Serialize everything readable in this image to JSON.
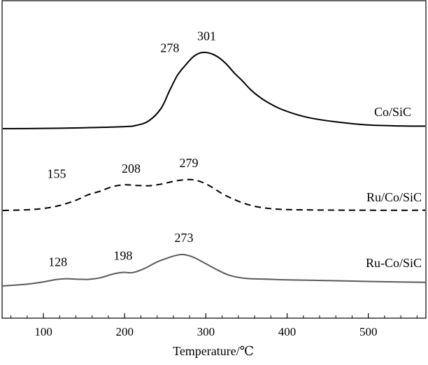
{
  "chart_data": {
    "type": "line",
    "title": "",
    "xlabel": "Temperature/℃",
    "ylabel": "",
    "xlim": [
      50,
      570
    ],
    "xticks": [
      100,
      200,
      300,
      400,
      500
    ],
    "xtick_labels": [
      "100",
      "200",
      "300",
      "400",
      "500"
    ],
    "grid": false,
    "colors": {
      "Co/SiC": "#000000",
      "Ru/Co/SiC": "#000000",
      "Ru-Co/SiC": "#5a5a5a"
    },
    "series": [
      {
        "name": "Co/SiC",
        "style": "solid",
        "x": [
          50,
          100,
          150,
          200,
          215,
          230,
          245,
          255,
          265,
          275,
          285,
          295,
          305,
          315,
          325,
          335,
          345,
          355,
          365,
          375,
          390,
          410,
          430,
          460,
          500,
          540,
          570
        ],
        "y": [
          0.0,
          0.1,
          0.4,
          0.9,
          1.5,
          3.5,
          9.0,
          16.5,
          23.5,
          28.0,
          31.8,
          33.5,
          33.2,
          31.5,
          28.5,
          24.5,
          21.0,
          17.2,
          14.2,
          11.8,
          9.0,
          6.4,
          4.6,
          3.0,
          1.6,
          1.2,
          1.1
        ],
        "peaks": [
          {
            "x": 278,
            "label": "278"
          },
          {
            "x": 301,
            "label": "301"
          }
        ]
      },
      {
        "name": "Ru/Co/SiC",
        "style": "dashed",
        "x": [
          50,
          80,
          100,
          120,
          140,
          155,
          170,
          185,
          200,
          215,
          230,
          245,
          260,
          270,
          280,
          290,
          300,
          310,
          320,
          335,
          350,
          365,
          380,
          400,
          440,
          500,
          570
        ],
        "y": [
          0.0,
          0.3,
          0.9,
          2.2,
          4.5,
          6.9,
          8.5,
          10.5,
          11.3,
          11.0,
          10.9,
          11.6,
          12.8,
          13.4,
          13.6,
          13.1,
          11.7,
          9.7,
          7.4,
          4.8,
          2.8,
          1.5,
          0.8,
          0.4,
          0.2,
          0.1,
          0.1
        ],
        "peaks": [
          {
            "x": 155,
            "label": "155"
          },
          {
            "x": 208,
            "label": "208"
          },
          {
            "x": 279,
            "label": "279"
          }
        ]
      },
      {
        "name": "Ru-Co/SiC",
        "style": "solid",
        "x": [
          50,
          80,
          100,
          115,
          128,
          140,
          155,
          170,
          185,
          198,
          210,
          225,
          240,
          255,
          265,
          273,
          285,
          300,
          315,
          330,
          350,
          375,
          400,
          450,
          500,
          570
        ],
        "y": [
          0.0,
          0.8,
          1.8,
          2.8,
          3.2,
          3.0,
          2.9,
          3.6,
          5.2,
          6.0,
          5.9,
          7.8,
          10.6,
          12.6,
          13.6,
          13.8,
          12.6,
          9.8,
          6.9,
          4.6,
          3.3,
          3.0,
          2.7,
          2.4,
          2.0,
          1.6
        ],
        "peaks": [
          {
            "x": 128,
            "label": "128"
          },
          {
            "x": 198,
            "label": "198"
          },
          {
            "x": 273,
            "label": "273"
          }
        ]
      }
    ]
  }
}
